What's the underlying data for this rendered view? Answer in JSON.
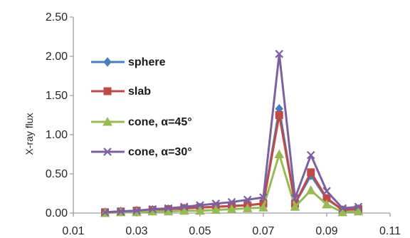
{
  "chart_data": {
    "type": "line",
    "title": "",
    "xlabel": "",
    "ylabel": "X-ray flux",
    "xlim": [
      0.01,
      0.11
    ],
    "ylim": [
      0,
      2.5
    ],
    "x_ticks": [
      0.01,
      0.03,
      0.05,
      0.07,
      0.09,
      0.11
    ],
    "y_ticks": [
      0,
      0.5,
      1.0,
      1.5,
      2.0,
      2.5
    ],
    "x_tick_labels": [
      "0.01",
      "0.03",
      "0.05",
      "0.07",
      "0.09",
      "0.11"
    ],
    "y_tick_labels": [
      "0.00",
      "0.50",
      "1.00",
      "1.50",
      "2.00",
      "2.50"
    ],
    "grid": false,
    "legend_position": "left",
    "x": [
      0.02,
      0.025,
      0.03,
      0.035,
      0.04,
      0.045,
      0.05,
      0.055,
      0.06,
      0.065,
      0.07,
      0.075,
      0.08,
      0.085,
      0.09,
      0.095,
      0.1
    ],
    "series": [
      {
        "name": "sphere",
        "color": "#4a7ebb",
        "marker": "diamond",
        "values": [
          0.01,
          0.02,
          0.03,
          0.04,
          0.05,
          0.06,
          0.07,
          0.08,
          0.09,
          0.1,
          0.12,
          1.33,
          0.12,
          0.48,
          0.18,
          0.04,
          0.05
        ]
      },
      {
        "name": "slab",
        "color": "#be4b48",
        "marker": "square",
        "values": [
          0.01,
          0.02,
          0.03,
          0.04,
          0.05,
          0.06,
          0.07,
          0.08,
          0.09,
          0.1,
          0.12,
          1.25,
          0.12,
          0.52,
          0.19,
          0.04,
          0.05
        ]
      },
      {
        "name": "cone, α=45°",
        "color": "#98b954",
        "marker": "triangle",
        "values": [
          0.0,
          0.01,
          0.01,
          0.02,
          0.02,
          0.03,
          0.03,
          0.04,
          0.05,
          0.06,
          0.07,
          0.75,
          0.08,
          0.29,
          0.11,
          0.01,
          0.02
        ]
      },
      {
        "name": "cone, α=30°",
        "color": "#7d60a0",
        "marker": "x",
        "values": [
          0.01,
          0.02,
          0.03,
          0.05,
          0.06,
          0.08,
          0.1,
          0.12,
          0.14,
          0.17,
          0.2,
          2.03,
          0.19,
          0.74,
          0.28,
          0.06,
          0.08
        ]
      }
    ]
  }
}
